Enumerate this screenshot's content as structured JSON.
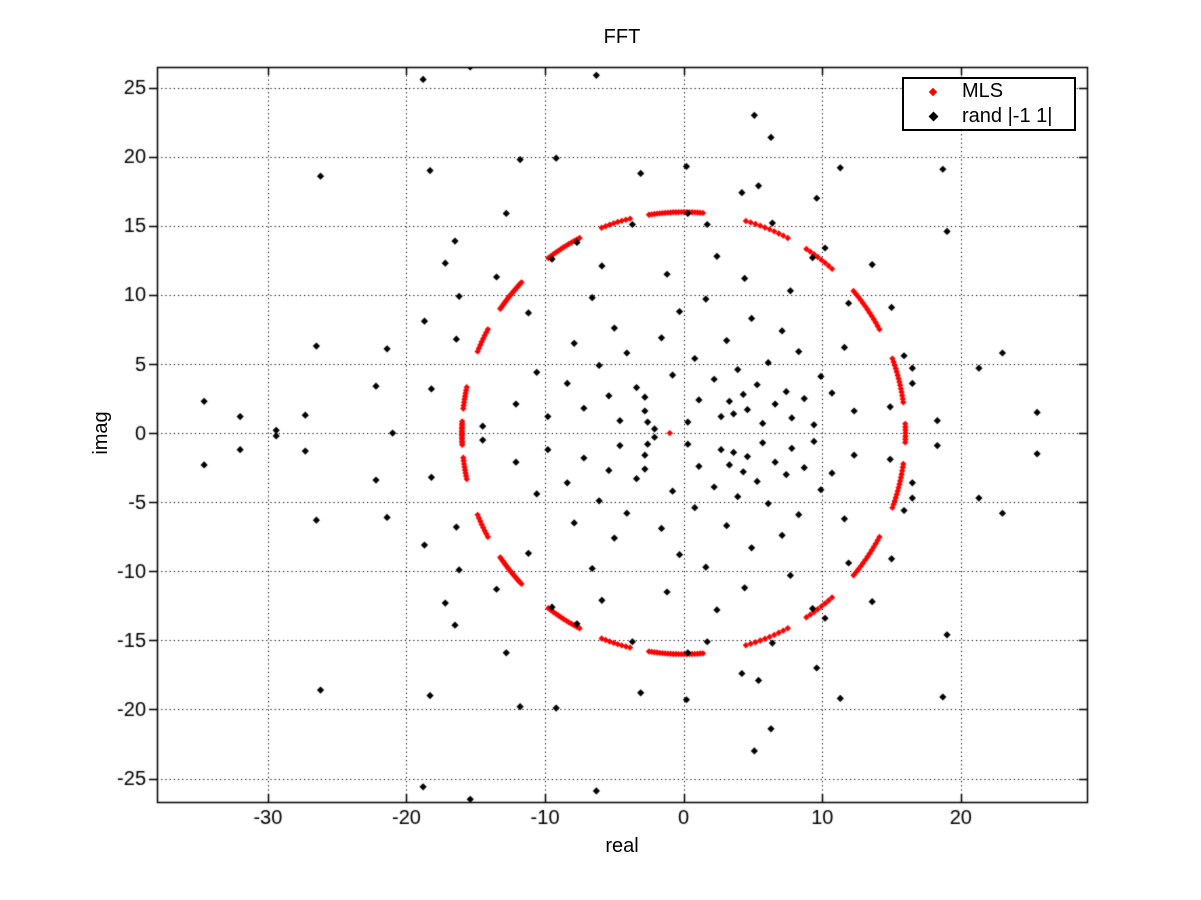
{
  "colors": {
    "background": "#ffffff",
    "axis": "#000000",
    "grid": "#000000",
    "mls": "#ff0000",
    "rand": "#000000"
  },
  "chart_data": {
    "type": "scatter",
    "title": "FFT",
    "xlabel": "real",
    "ylabel": "imag",
    "xlim": [
      -38.0,
      29.1
    ],
    "ylim": [
      -26.7,
      26.5
    ],
    "xticks": [
      -30,
      -20,
      -10,
      0,
      10,
      20
    ],
    "yticks": [
      -25,
      -20,
      -15,
      -10,
      -5,
      0,
      5,
      10,
      15,
      20,
      25
    ],
    "grid": true,
    "grid_style": "dotted",
    "tick_length": 8,
    "legend": {
      "position": "top-right",
      "entries": [
        {
          "label": "MLS",
          "color": "#ff0000",
          "marker": "diamond"
        },
        {
          "label": "rand |-1 1|",
          "color": "#000000",
          "marker": "diamond"
        }
      ]
    },
    "series": [
      {
        "name": "MLS",
        "color": "#ff0000",
        "marker": "diamond",
        "marker_half_size": 3.2,
        "note": "FFT bins of a maximum-length sequence: constant magnitude 16 (points on circle radius 16 centered at origin); conjugate-symmetric, angles below are mirrored about the real axis; DC bin at (-1,0)",
        "circle": {
          "center": [
            0,
            0
          ],
          "radius": 16
        },
        "mirror_angles": true,
        "dc_point": [
          -1,
          0
        ],
        "angles_deg": [
          0,
          0.8,
          1.6,
          2.4,
          8,
          8.9,
          9.8,
          10.7,
          11.6,
          12.5,
          13.4,
          14.3,
          15.2,
          16.1,
          17,
          17.9,
          18.8,
          19.7,
          28,
          29,
          30,
          31,
          32,
          33,
          34,
          35,
          36,
          37,
          38,
          39,
          40,
          48,
          49.2,
          50.4,
          51.6,
          52.8,
          54,
          55.2,
          56.4,
          62,
          63.3,
          64.6,
          65.9,
          67.2,
          68.5,
          69.8,
          71.1,
          72.4,
          73.7,
          85,
          85.7,
          86.4,
          87.1,
          87.8,
          88.5,
          89.2,
          89.9,
          90.6,
          91.3,
          92,
          92.7,
          93.4,
          94.1,
          94.8,
          95.5,
          96.2,
          96.9,
          97.6,
          98.3,
          99,
          104,
          105.1,
          106.2,
          107.3,
          108.4,
          109.5,
          110.6,
          111.7,
          118,
          118.8,
          119.6,
          120.4,
          121.2,
          122,
          122.8,
          123.6,
          124.4,
          125.2,
          126,
          126.8,
          127.6,
          137,
          137.6,
          138.1,
          138.7,
          139.2,
          139.8,
          140.3,
          140.9,
          141.4,
          142,
          142.5,
          143.1,
          143.6,
          144.2,
          144.7,
          145.3,
          145.8,
          152,
          152.9,
          153.8,
          154.7,
          155.6,
          156.5,
          157.4,
          158.3,
          168,
          168.8,
          169.6,
          170.4,
          171.2,
          172,
          172.8,
          173.6,
          177,
          177.9,
          178.8,
          179.7,
          180.6,
          181.5,
          182.4
        ]
      },
      {
        "name": "rand |-1 1|",
        "color": "#000000",
        "marker": "diamond",
        "marker_half_size": 3.6,
        "note": "FFT bins of a random +/-1 sequence; conjugate-symmetric: every point with imag>0.15 is mirrored about the real axis",
        "mirror_points": true,
        "points_upper_half": [
          [
            -15.4,
            26.5
          ],
          [
            -18.8,
            25.6
          ],
          [
            -6.3,
            25.9
          ],
          [
            5.1,
            23.0
          ],
          [
            6.3,
            21.4
          ],
          [
            -26.2,
            18.6
          ],
          [
            -18.3,
            19.0
          ],
          [
            -11.8,
            19.8
          ],
          [
            -9.2,
            19.9
          ],
          [
            -3.1,
            18.8
          ],
          [
            0.2,
            19.3
          ],
          [
            4.2,
            17.4
          ],
          [
            5.4,
            17.9
          ],
          [
            9.6,
            17.0
          ],
          [
            11.3,
            19.2
          ],
          [
            18.7,
            19.1
          ],
          [
            -16.5,
            13.9
          ],
          [
            -17.2,
            12.3
          ],
          [
            -12.8,
            15.9
          ],
          [
            -3.7,
            15.1
          ],
          [
            0.3,
            15.9
          ],
          [
            6.4,
            15.2
          ],
          [
            1.7,
            15.1
          ],
          [
            10.2,
            13.4
          ],
          [
            9.3,
            12.7
          ],
          [
            13.6,
            12.2
          ],
          [
            19.0,
            14.6
          ],
          [
            15.0,
            9.1
          ],
          [
            15.9,
            5.6
          ],
          [
            16.5,
            4.7
          ],
          [
            16.5,
            3.6
          ],
          [
            14.9,
            1.9
          ],
          [
            18.3,
            0.9
          ],
          [
            23.0,
            5.8
          ],
          [
            21.3,
            4.7
          ],
          [
            25.5,
            1.5
          ],
          [
            -18.7,
            8.1
          ],
          [
            -16.4,
            6.8
          ],
          [
            -26.5,
            6.3
          ],
          [
            -21.4,
            6.1
          ],
          [
            -22.2,
            3.4
          ],
          [
            -18.2,
            3.2
          ],
          [
            -34.6,
            2.3
          ],
          [
            -32.0,
            1.2
          ],
          [
            -27.3,
            1.3
          ],
          [
            -16.2,
            9.9
          ],
          [
            -14.5,
            0.5
          ],
          [
            -29.4,
            0.2
          ],
          [
            -21.0,
            0.0
          ],
          [
            -12.1,
            2.1
          ],
          [
            -10.6,
            4.4
          ],
          [
            -9.8,
            1.2
          ],
          [
            -8.4,
            3.6
          ],
          [
            -7.9,
            6.5
          ],
          [
            -7.2,
            1.8
          ],
          [
            -6.6,
            9.8
          ],
          [
            -6.1,
            4.9
          ],
          [
            -5.4,
            2.7
          ],
          [
            -5.0,
            7.6
          ],
          [
            -4.6,
            0.9
          ],
          [
            -4.1,
            5.8
          ],
          [
            -3.4,
            3.3
          ],
          [
            -2.8,
            2.6
          ],
          [
            -2.8,
            1.6
          ],
          [
            -2.6,
            0.8
          ],
          [
            -2.1,
            0.3
          ],
          [
            -1.6,
            6.9
          ],
          [
            -1.2,
            11.5
          ],
          [
            -0.8,
            4.2
          ],
          [
            -0.3,
            8.8
          ],
          [
            0.3,
            0.8
          ],
          [
            0.8,
            5.4
          ],
          [
            1.1,
            2.4
          ],
          [
            1.6,
            9.7
          ],
          [
            2.2,
            3.9
          ],
          [
            2.7,
            1.2
          ],
          [
            3.1,
            6.7
          ],
          [
            3.3,
            2.3
          ],
          [
            3.6,
            1.4
          ],
          [
            3.9,
            4.6
          ],
          [
            4.3,
            2.8
          ],
          [
            4.6,
            1.7
          ],
          [
            4.9,
            8.3
          ],
          [
            5.3,
            3.5
          ],
          [
            5.7,
            0.7
          ],
          [
            6.1,
            5.1
          ],
          [
            6.6,
            2.1
          ],
          [
            7.1,
            7.4
          ],
          [
            7.4,
            3.0
          ],
          [
            7.8,
            1.1
          ],
          [
            8.3,
            5.9
          ],
          [
            8.7,
            2.5
          ],
          [
            9.4,
            0.6
          ],
          [
            9.9,
            4.1
          ],
          [
            10.7,
            2.9
          ],
          [
            11.6,
            6.2
          ],
          [
            12.3,
            1.6
          ],
          [
            -13.5,
            11.3
          ],
          [
            -11.2,
            8.7
          ],
          [
            -9.5,
            12.6
          ],
          [
            -7.7,
            13.8
          ],
          [
            -5.9,
            12.1
          ],
          [
            2.4,
            12.8
          ],
          [
            4.4,
            11.2
          ],
          [
            7.7,
            10.3
          ],
          [
            11.9,
            9.4
          ]
        ]
      }
    ]
  }
}
